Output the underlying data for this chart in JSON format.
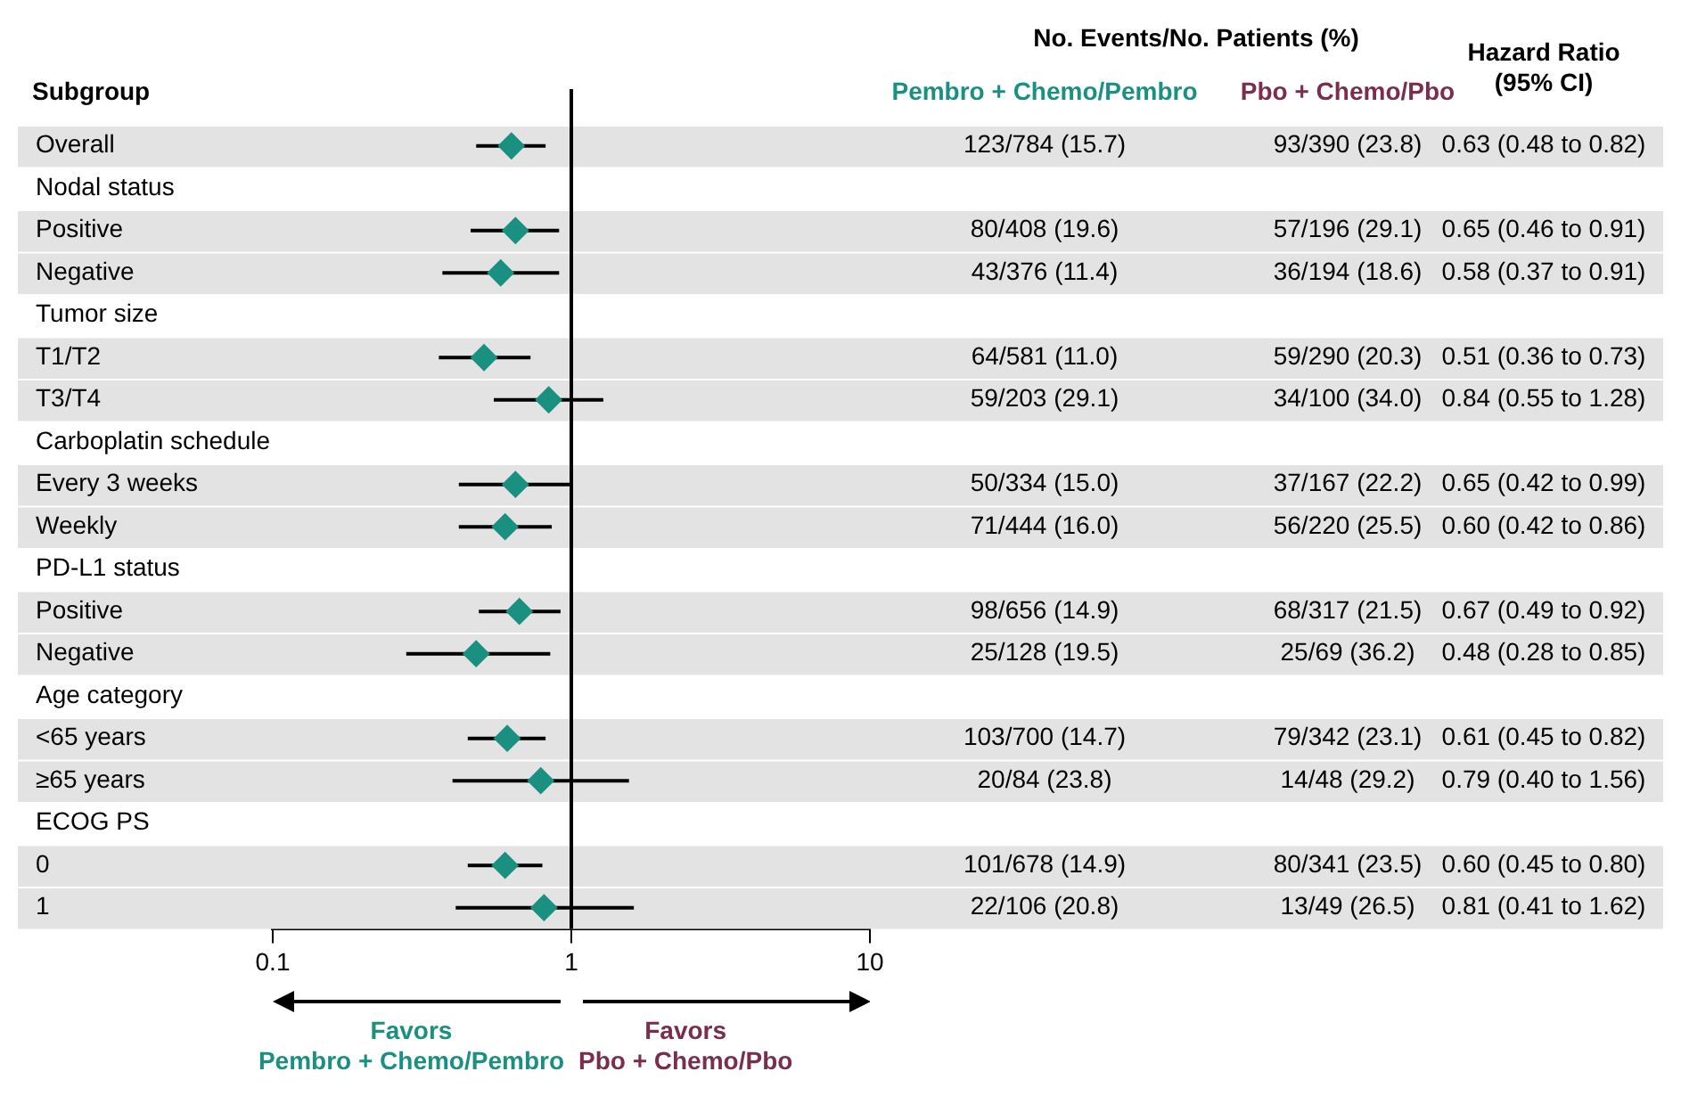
{
  "chart_data": {
    "type": "scatter",
    "orientation": "horizontal",
    "ylabel": "Subgroup",
    "categories": [
      "Overall",
      "Nodal status",
      "Positive",
      "Negative",
      "Tumor size",
      "T1/T2",
      "T3/T4",
      "Carboplatin schedule",
      "Every 3 weeks",
      "Weekly",
      "PD-L1 status",
      "Positive",
      "Negative",
      "Age category",
      "<65 years",
      "≥65 years",
      "ECOG PS",
      "0",
      "1"
    ],
    "series": [
      {
        "color": "#1a9080",
        "values": [
          0.63,
          null,
          0.65,
          0.58,
          null,
          0.51,
          0.84,
          null,
          0.65,
          0.6,
          null,
          0.67,
          0.48,
          null,
          0.61,
          0.79,
          null,
          0.6,
          0.81
        ],
        "errors": [
          [
            0.48,
            0.82
          ],
          null,
          [
            0.46,
            0.91
          ],
          [
            0.37,
            0.91
          ],
          null,
          [
            0.36,
            0.73
          ],
          [
            0.55,
            1.28
          ],
          null,
          [
            0.42,
            0.99
          ],
          [
            0.42,
            0.86
          ],
          null,
          [
            0.49,
            0.92
          ],
          [
            0.28,
            0.85
          ],
          null,
          [
            0.45,
            0.82
          ],
          [
            0.4,
            1.56
          ],
          null,
          [
            0.45,
            0.8
          ],
          [
            0.41,
            1.62
          ]
        ],
        "value_labels": [
          "0.63 (0.48 to 0.82)",
          null,
          "0.65 (0.46 to 0.91)",
          "0.58 (0.37 to 0.91)",
          null,
          "0.51 (0.36 to 0.73)",
          "0.84 (0.55 to 1.28)",
          null,
          "0.65 (0.42 to 0.99)",
          "0.60 (0.42 to 0.86)",
          null,
          "0.67 (0.49 to 0.92)",
          "0.48 (0.28 to 0.85)",
          null,
          "0.61 (0.45 to 0.82)",
          "0.79 (0.40 to 1.56)",
          null,
          "0.60 (0.45 to 0.80)",
          "0.81 (0.41 to 1.62)"
        ]
      },
      {
        "name": "Pembro + Chemo/Pembro",
        "color": "#1a9080",
        "values": [
          null,
          null,
          null,
          null,
          null,
          null,
          null,
          null,
          null,
          null,
          null,
          null,
          null,
          null,
          null,
          null,
          null,
          null,
          null
        ],
        "value_labels": [
          "123/784 (15.7)",
          null,
          "80/408 (19.6)",
          "43/376 (11.4)",
          null,
          "64/581 (11.0)",
          "59/203 (29.1)",
          null,
          "50/334 (15.0)",
          "71/444 (16.0)",
          null,
          "98/656 (14.9)",
          "25/128 (19.5)",
          null,
          "103/700 (14.7)",
          "20/84 (23.8)",
          null,
          "101/678 (14.9)",
          "22/106 (20.8)"
        ]
      },
      {
        "name": "Pbo + Chemo/Pbo",
        "color": "#7b2d4d",
        "values": [
          null,
          null,
          null,
          null,
          null,
          null,
          null,
          null,
          null,
          null,
          null,
          null,
          null,
          null,
          null,
          null,
          null,
          null,
          null
        ],
        "value_labels": [
          "93/390 (23.8)",
          null,
          "57/196 (29.1)",
          "36/194 (18.6)",
          null,
          "59/290 (20.3)",
          "34/100 (34.0)",
          null,
          "37/167 (22.2)",
          "56/220 (25.5)",
          null,
          "68/317 (21.5)",
          "25/69 (36.2)",
          null,
          "79/342 (23.1)",
          "14/48 (29.2)",
          null,
          "80/341 (23.5)",
          "13/49 (26.5)"
        ]
      }
    ],
    "xlim": [
      0.1,
      10
    ],
    "xticks": [
      0.1,
      1,
      10
    ],
    "log": "x",
    "ref_lines": [
      {
        "axis": "x",
        "value": 1,
        "color": "#000000"
      }
    ],
    "marker": "diamond",
    "legend": false,
    "grid": false,
    "tick_labels": "x",
    "annotations": [
      "No. Events/No. Patients (%)",
      "Hazard Ratio\n(95% CI)",
      "Favors\nPembro + Chemo/Pembro",
      "Favors\nPbo + Chemo/Pbo"
    ]
  }
}
